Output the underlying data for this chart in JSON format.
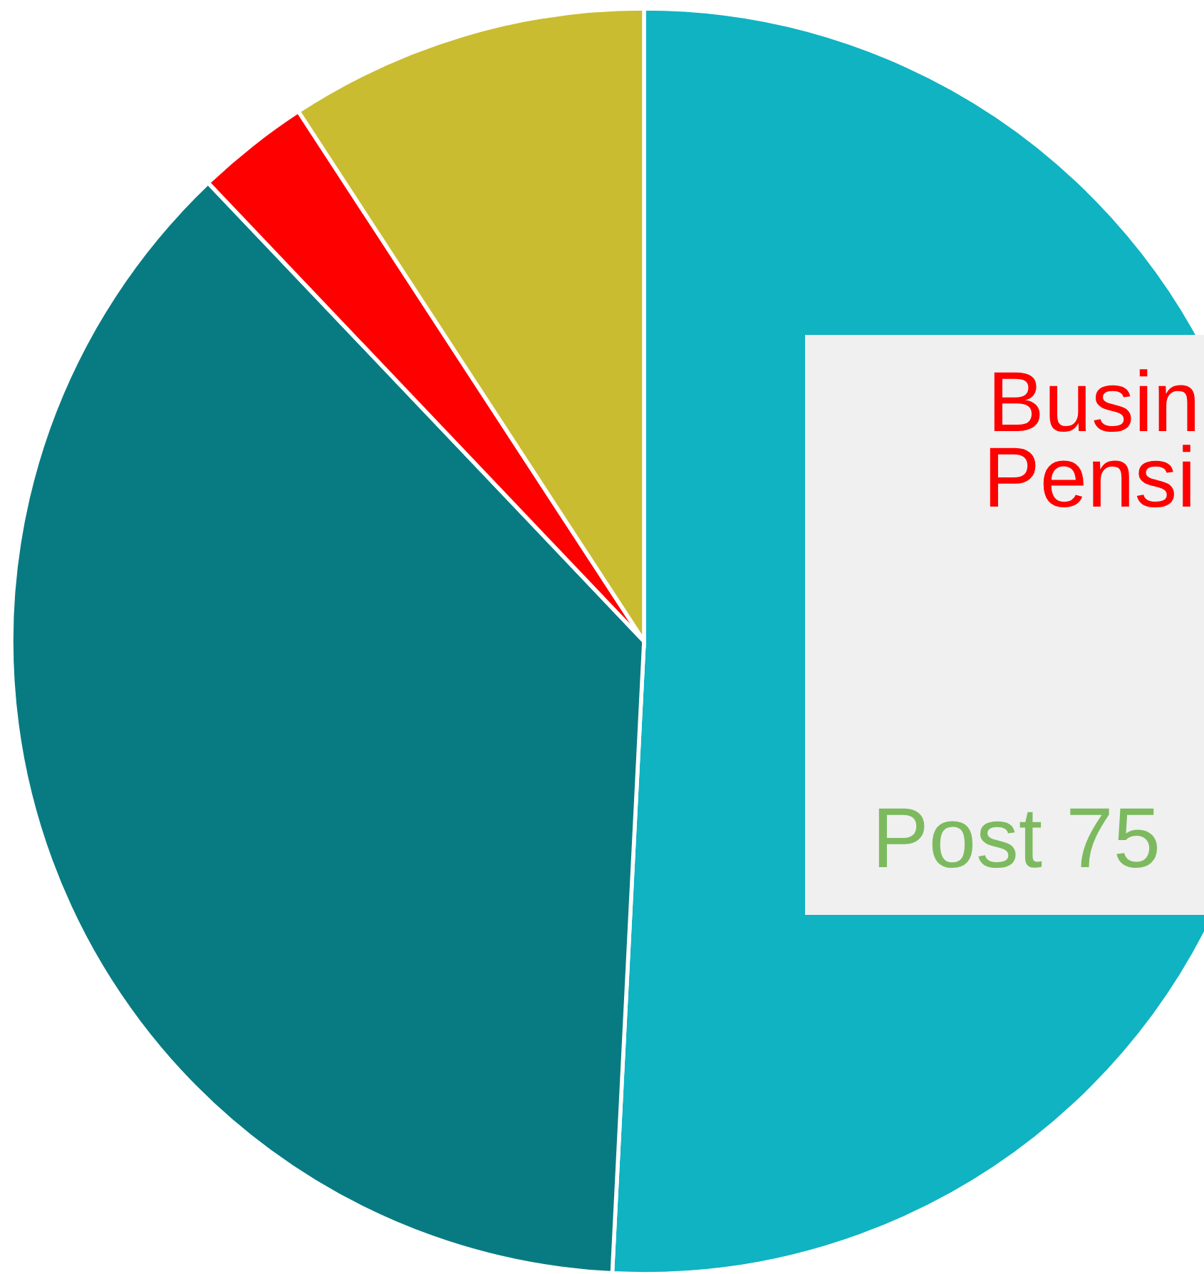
{
  "chart_data": {
    "type": "pie",
    "categories": [
      null,
      null,
      null,
      null
    ],
    "values": [
      50.8,
      37.1,
      2.9,
      9.2
    ],
    "colors": [
      "#0fb3c2",
      "#087b82",
      "#ff0000",
      "#c9bc30"
    ],
    "annotations": [
      "Busin",
      "Pensi",
      "Post 75"
    ],
    "legend": false
  }
}
